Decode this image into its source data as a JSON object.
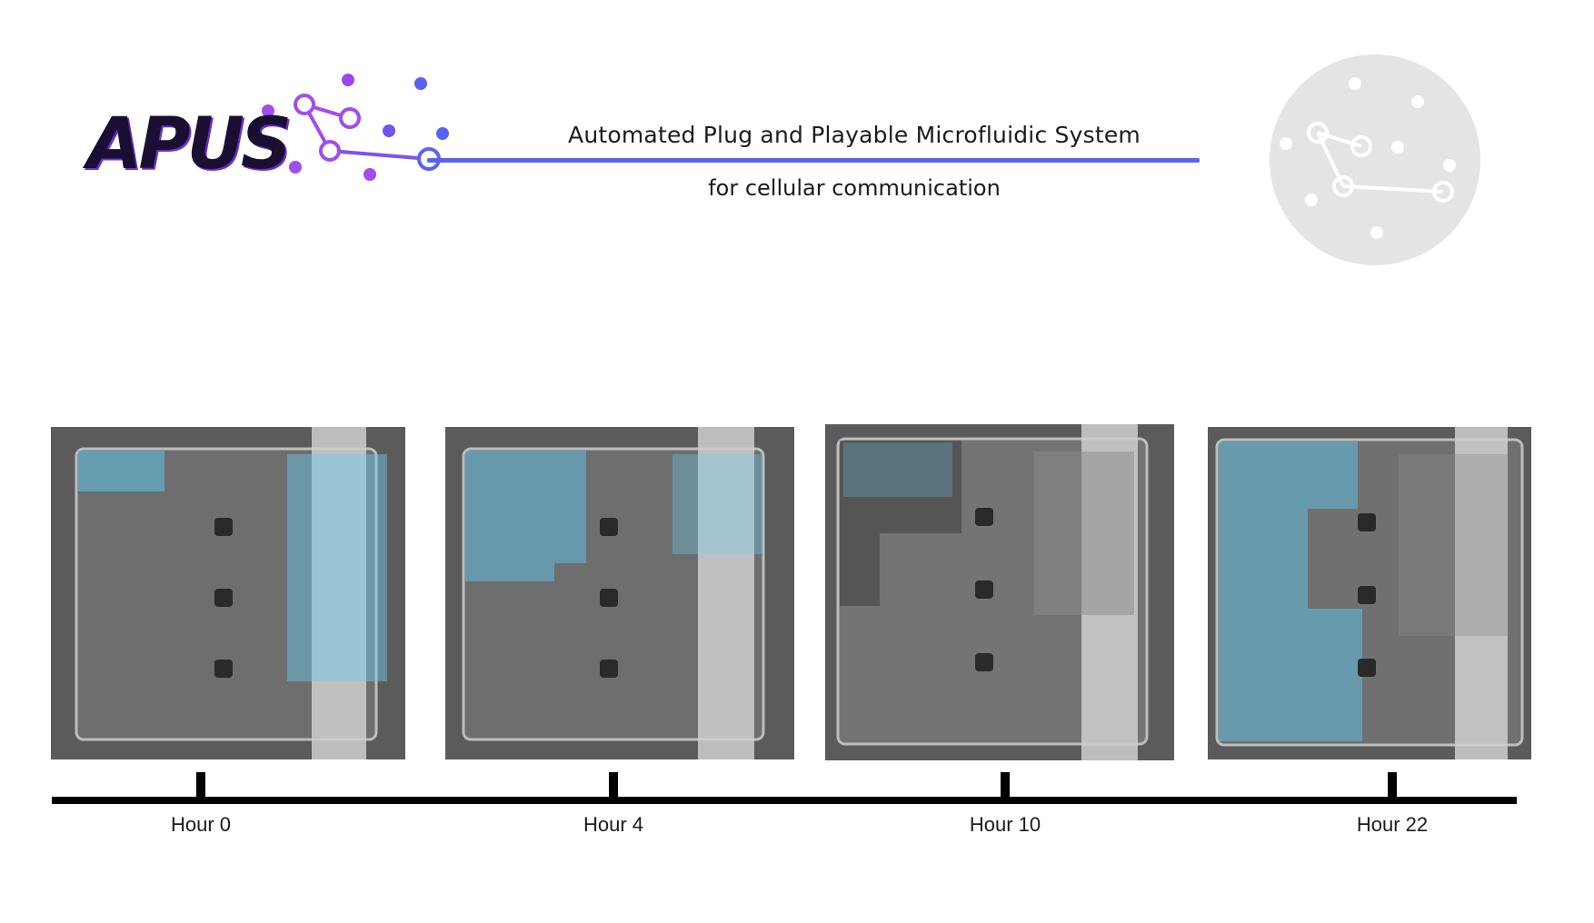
{
  "header": {
    "logo_text": "APUS",
    "title_line1": "Automated Plug and Playable Microfluidic System",
    "title_line2": "for cellular communication",
    "colors": {
      "accent_blue": "#5a63f0",
      "accent_purple": "#a14df0",
      "logo_dark": "#1a0f33",
      "badge_grey": "#e4e4e4"
    }
  },
  "panels": [
    {
      "label": "Hour 0"
    },
    {
      "label": "Hour 4"
    },
    {
      "label": "Hour 10"
    },
    {
      "label": "Hour 22"
    }
  ],
  "timeline": {
    "ticks": [
      "Hour 0",
      "Hour 4",
      "Hour 10",
      "Hour 22"
    ]
  }
}
